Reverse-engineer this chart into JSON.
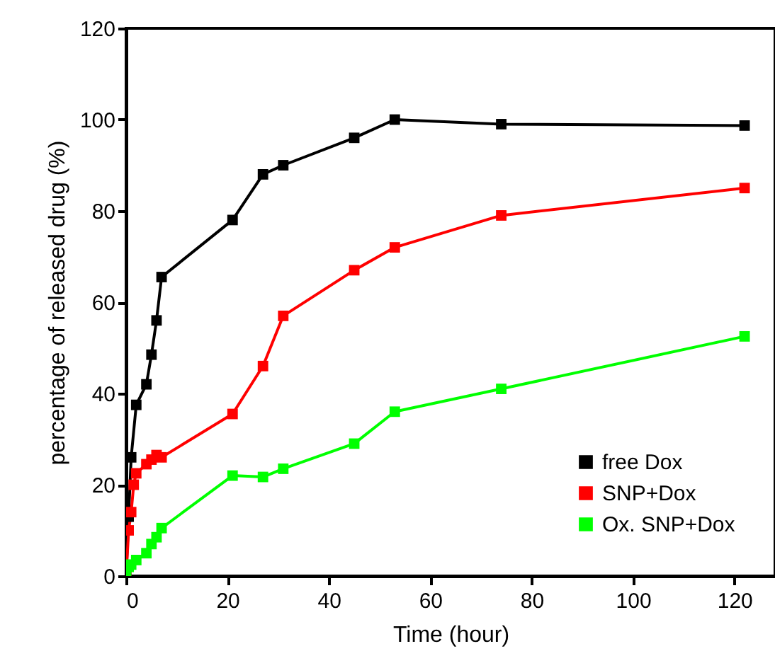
{
  "chart_data": {
    "type": "line",
    "xlabel": "Time (hour)",
    "ylabel": "percentage of released drug (%)",
    "xlim": [
      0,
      128
    ],
    "xticks": [
      0,
      20,
      40,
      60,
      80,
      100,
      120
    ],
    "ylim": [
      0,
      120
    ],
    "yticks": [
      0,
      20,
      40,
      60,
      80,
      100,
      120
    ],
    "marker": "square",
    "legend": "bottom right",
    "grid": false,
    "series": [
      {
        "name": "free Dox",
        "color": "#000000",
        "x": [
          0,
          0.5,
          1,
          2,
          4,
          5,
          6,
          7,
          21,
          27,
          31,
          45,
          53,
          74,
          122
        ],
        "values": [
          0,
          13,
          26,
          37.5,
          42,
          48.5,
          56,
          65.5,
          78,
          88,
          90,
          96,
          100,
          99,
          98.7
        ]
      },
      {
        "name": "SNP+Dox",
        "color": "#ff0000",
        "x": [
          0,
          0.5,
          1,
          1.5,
          2,
          4,
          5,
          6,
          7,
          21,
          27,
          31,
          45,
          53,
          74,
          122
        ],
        "values": [
          0,
          10,
          14,
          20,
          22.5,
          24.5,
          25.5,
          26.5,
          26,
          35.5,
          46,
          57,
          67,
          72,
          79,
          85
        ]
      },
      {
        "name": "Ox. SNP+Dox",
        "color": "#00ff00",
        "x": [
          0,
          0.5,
          1,
          2,
          4,
          5,
          6,
          7,
          21,
          27,
          31,
          45,
          53,
          74,
          122
        ],
        "values": [
          0,
          2,
          2.5,
          3.5,
          5,
          7,
          8.5,
          10.5,
          22,
          21.7,
          23.5,
          29,
          36,
          41,
          52.5
        ]
      }
    ]
  }
}
